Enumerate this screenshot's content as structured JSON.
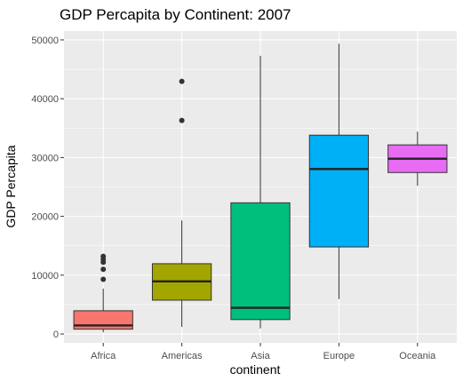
{
  "chart_data": {
    "type": "box",
    "title": "GDP Percapita by Continent: 2007",
    "xlabel": "continent",
    "ylabel": "GDP Percapita",
    "ylim": [
      -1500,
      51500
    ],
    "yticks": [
      0,
      10000,
      20000,
      30000,
      40000,
      50000
    ],
    "grid": true,
    "legend": "none",
    "categories": [
      "Africa",
      "Americas",
      "Asia",
      "Europe",
      "Oceania"
    ],
    "boxes": [
      {
        "category": "Africa",
        "min": 280,
        "q1": 820,
        "median": 1450,
        "q3": 3950,
        "max": 7700,
        "outliers": [
          9300,
          11000,
          12200,
          12700,
          13200
        ],
        "color": "#F8766D"
      },
      {
        "category": "Americas",
        "min": 1200,
        "q1": 5750,
        "median": 8950,
        "q3": 11950,
        "max": 19300,
        "outliers": [
          36300,
          42950
        ],
        "color": "#A3A500"
      },
      {
        "category": "Asia",
        "min": 950,
        "q1": 2450,
        "median": 4450,
        "q3": 22300,
        "max": 47300,
        "outliers": [],
        "color": "#00BF7D"
      },
      {
        "category": "Europe",
        "min": 5950,
        "q1": 14800,
        "median": 28050,
        "q3": 33800,
        "max": 49350,
        "outliers": [],
        "color": "#00B0F6"
      },
      {
        "category": "Oceania",
        "min": 25200,
        "q1": 27450,
        "median": 29800,
        "q3": 32150,
        "max": 34400,
        "outliers": [],
        "color": "#E76BF3"
      }
    ]
  },
  "colors": {
    "panel_background": "#EBEBEB",
    "major_grid": "#FFFFFF",
    "box_stroke": "#333333",
    "outlier": "#333333"
  }
}
